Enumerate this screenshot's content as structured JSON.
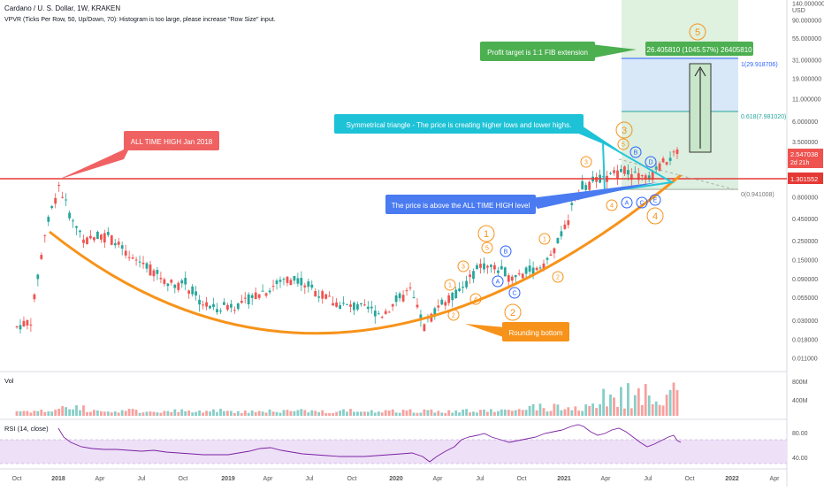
{
  "header": {
    "title": "Cardano / U. S. Dollar, 1W, KRAKEN",
    "indicator_line": "VPVR (Ticks Per Row, 50, Up/Down, 70): Histogram is too large, please increase \"Row Size\" input."
  },
  "panes": {
    "volume_label": "Vol",
    "rsi_label": "RSI (14, close)"
  },
  "chart_data": {
    "type": "candlestick",
    "title": "Cardano / U. S. Dollar, 1W, KRAKEN",
    "y_scale": "log",
    "y_currency_label": "USD",
    "price_ticks": [
      "140.000000",
      "90.000000",
      "55.000000",
      "31.000000",
      "19.000000",
      "11.000000",
      "6.000000",
      "3.500000",
      "2.100000",
      "1.300000",
      "0.800000",
      "0.450000",
      "0.250000",
      "0.150000",
      "0.090000",
      "0.055000",
      "0.030000",
      "0.018000",
      "0.011000"
    ],
    "x_ticks": [
      "Oct",
      "2018",
      "Apr",
      "Jul",
      "Oct",
      "2019",
      "Apr",
      "Jul",
      "Oct",
      "2020",
      "Apr",
      "Jul",
      "Oct",
      "2021",
      "Apr",
      "Jul",
      "Oct",
      "2022",
      "Apr"
    ],
    "last_price": "2.547038",
    "countdown": "2d 21h",
    "ath_level": "1.301552",
    "approx_price_path": [
      [
        "2017-10",
        0.025
      ],
      [
        "2017-11",
        0.03
      ],
      [
        "2017-12",
        0.3
      ],
      [
        "2018-01",
        1.1
      ],
      [
        "2018-02",
        0.4
      ],
      [
        "2018-03",
        0.25
      ],
      [
        "2018-04",
        0.3
      ],
      [
        "2018-05",
        0.25
      ],
      [
        "2018-06",
        0.15
      ],
      [
        "2018-07",
        0.14
      ],
      [
        "2018-08",
        0.1
      ],
      [
        "2018-09",
        0.08
      ],
      [
        "2018-10",
        0.08
      ],
      [
        "2018-11",
        0.05
      ],
      [
        "2018-12",
        0.04
      ],
      [
        "2019-01",
        0.045
      ],
      [
        "2019-02",
        0.045
      ],
      [
        "2019-03",
        0.06
      ],
      [
        "2019-04",
        0.07
      ],
      [
        "2019-05",
        0.09
      ],
      [
        "2019-06",
        0.09
      ],
      [
        "2019-07",
        0.07
      ],
      [
        "2019-08",
        0.055
      ],
      [
        "2019-09",
        0.045
      ],
      [
        "2019-10",
        0.042
      ],
      [
        "2019-11",
        0.04
      ],
      [
        "2019-12",
        0.035
      ],
      [
        "2020-01",
        0.05
      ],
      [
        "2020-02",
        0.065
      ],
      [
        "2020-03",
        0.025
      ],
      [
        "2020-04",
        0.045
      ],
      [
        "2020-05",
        0.055
      ],
      [
        "2020-06",
        0.08
      ],
      [
        "2020-07",
        0.13
      ],
      [
        "2020-08",
        0.12
      ],
      [
        "2020-09",
        0.1
      ],
      [
        "2020-10",
        0.1
      ],
      [
        "2020-11",
        0.12
      ],
      [
        "2020-12",
        0.16
      ],
      [
        "2021-01",
        0.35
      ],
      [
        "2021-02",
        1.0
      ],
      [
        "2021-03",
        1.2
      ],
      [
        "2021-04",
        1.3
      ],
      [
        "2021-05",
        1.7
      ],
      [
        "2021-06",
        1.4
      ],
      [
        "2021-07",
        1.3
      ],
      [
        "2021-08",
        2.0
      ],
      [
        "2021-09",
        2.547
      ]
    ],
    "fib_levels": [
      {
        "label": "1(29.918706)",
        "value": 29.918706
      },
      {
        "label": "0.618(7.981020)",
        "value": 7.98102
      },
      {
        "label": "0(0.941008)",
        "value": 0.941008
      }
    ],
    "projection_label": "26.405810 (1045.57%) 26405810",
    "wave_labels": [
      "1",
      "2",
      "3",
      "4",
      "5",
      "A",
      "B",
      "C",
      "D",
      "E"
    ],
    "annotations": [
      "ALL TIME HIGH Jan 2018",
      "Symmetrical triangle - The price is creating higher lows and lower highs.",
      "The price is above the ALL TIME HIGH level",
      "Profit target is 1:1 FIB extension",
      "Rounding bottom"
    ],
    "volume": {
      "axis_ticks": [
        "800M",
        "400M"
      ]
    },
    "rsi": {
      "axis_ticks": [
        "80.00",
        "40.00"
      ],
      "band": [
        30,
        70
      ]
    }
  },
  "colors": {
    "up": "#26a69a",
    "down": "#ef5350",
    "ath_line": "#e53935",
    "curve": "#f7931a",
    "wave": "#f7931a",
    "abc": "#2962ff",
    "triangle": "#26c6da",
    "rsi_line": "#7b1fa2",
    "rsi_band": "#ede0f7",
    "callout_red": "#f06262",
    "callout_cyan": "#1ec2d6",
    "callout_blue": "#4a7bf0",
    "callout_green": "#4caf50",
    "callout_orange": "#f7931a"
  }
}
